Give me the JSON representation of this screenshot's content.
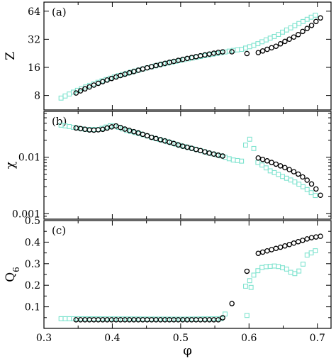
{
  "chart_data": [
    {
      "type": "scatter",
      "panel_label": "(a)",
      "ylabel": "Z",
      "xlabel": "",
      "xlim": [
        0.3,
        0.72
      ],
      "ylim": [
        5.6,
        80
      ],
      "yscale": "log2",
      "yticks": [
        "8",
        "16",
        "32",
        "64"
      ],
      "xticks": [
        "0.3",
        "0.4",
        "0.5",
        "0.6",
        "0.7"
      ],
      "show_xtick_labels": false,
      "series": [
        {
          "marker": "square",
          "color": "#7fe3cf",
          "x_start": 0.325,
          "x_end": 0.697,
          "x_step": 0.006,
          "x": [
            0.325,
            0.56,
            0.575,
            0.59,
            0.61,
            0.64,
            0.66,
            0.68,
            0.697
          ],
          "y": [
            7.5,
            23,
            24.2,
            25,
            28,
            35,
            42,
            50,
            58
          ]
        },
        {
          "marker": "circle",
          "color": "#000000",
          "x_start": 0.347,
          "x_end": 0.71,
          "x_step": 0.0065,
          "gaps": [
            [
              0.562,
              0.608
            ]
          ],
          "extra_points": [
            [
              0.575,
              23.5
            ],
            [
              0.597,
              22.5
            ]
          ],
          "x": [
            0.347,
            0.56,
            0.61,
            0.64,
            0.67,
            0.69,
            0.71
          ],
          "y": [
            8.5,
            23.5,
            22.5,
            27,
            35,
            44,
            58
          ]
        }
      ]
    },
    {
      "type": "scatter",
      "panel_label": "(b)",
      "ylabel": "χ",
      "xlabel": "",
      "xlim": [
        0.3,
        0.72
      ],
      "ylim": [
        0.0008,
        0.065
      ],
      "yscale": "log10",
      "yticks": [
        "0.001",
        "0.01"
      ],
      "xticks": [
        "0.3",
        "0.4",
        "0.5",
        "0.6",
        "0.7"
      ],
      "show_xtick_labels": false,
      "series": [
        {
          "marker": "square",
          "color": "#7fe3cf",
          "x_start": 0.325,
          "x_end": 0.697,
          "x_step": 0.006,
          "x": [
            0.325,
            0.36,
            0.38,
            0.4,
            0.42,
            0.46,
            0.5,
            0.54,
            0.56,
            0.575,
            0.59,
            0.596,
            0.603,
            0.61,
            0.63,
            0.65,
            0.67,
            0.69,
            0.697
          ],
          "y": [
            0.037,
            0.031,
            0.031,
            0.037,
            0.03,
            0.022,
            0.016,
            0.012,
            0.0105,
            0.009,
            0.0085,
            0.018,
            0.022,
            0.0085,
            0.0058,
            0.0045,
            0.0035,
            0.0024,
            0.0021
          ]
        },
        {
          "marker": "circle",
          "color": "#000000",
          "x_start": 0.347,
          "x_end": 0.71,
          "x_step": 0.0065,
          "gaps": [
            [
              0.562,
              0.608
            ]
          ],
          "x": [
            0.347,
            0.37,
            0.385,
            0.405,
            0.42,
            0.46,
            0.5,
            0.54,
            0.56,
            0.61,
            0.64,
            0.67,
            0.69,
            0.71
          ],
          "y": [
            0.033,
            0.03,
            0.031,
            0.036,
            0.031,
            0.022,
            0.016,
            0.012,
            0.0105,
            0.01,
            0.0075,
            0.0052,
            0.0035,
            0.0016
          ]
        }
      ]
    },
    {
      "type": "scatter",
      "panel_label": "(c)",
      "ylabel": "Q",
      "ylabel_sub": "6",
      "xlabel": "φ",
      "xlim": [
        0.3,
        0.72
      ],
      "ylim": [
        0.0,
        0.5
      ],
      "yscale": "linear",
      "yticks": [
        "0.1",
        "0.2",
        "0.3",
        "0.4",
        "0.5"
      ],
      "xticks": [
        "0.3",
        "0.4",
        "0.5",
        "0.6",
        "0.7"
      ],
      "show_xtick_labels": true,
      "series": [
        {
          "marker": "square",
          "color": "#7fe3cf",
          "x_start": 0.325,
          "x_end": 0.697,
          "x_step": 0.006,
          "gaps": [
            [
              0.566,
              0.59
            ]
          ],
          "extra_points": [
            [
              0.597,
              0.06
            ],
            [
              0.603,
              0.19
            ]
          ],
          "x": [
            0.325,
            0.5,
            0.56,
            0.61,
            0.62,
            0.64,
            0.655,
            0.665,
            0.675,
            0.685,
            0.697
          ],
          "y": [
            0.045,
            0.043,
            0.045,
            0.26,
            0.285,
            0.29,
            0.275,
            0.25,
            0.27,
            0.34,
            0.36
          ]
        },
        {
          "marker": "circle",
          "color": "#000000",
          "x_start": 0.347,
          "x_end": 0.71,
          "x_step": 0.0065,
          "gaps": [
            [
              0.562,
              0.608
            ]
          ],
          "extra_points": [
            [
              0.575,
              0.115
            ],
            [
              0.597,
              0.265
            ]
          ],
          "x": [
            0.347,
            0.5,
            0.56,
            0.61,
            0.65,
            0.69,
            0.71
          ],
          "y": [
            0.04,
            0.04,
            0.04,
            0.345,
            0.38,
            0.42,
            0.43
          ]
        }
      ]
    }
  ]
}
